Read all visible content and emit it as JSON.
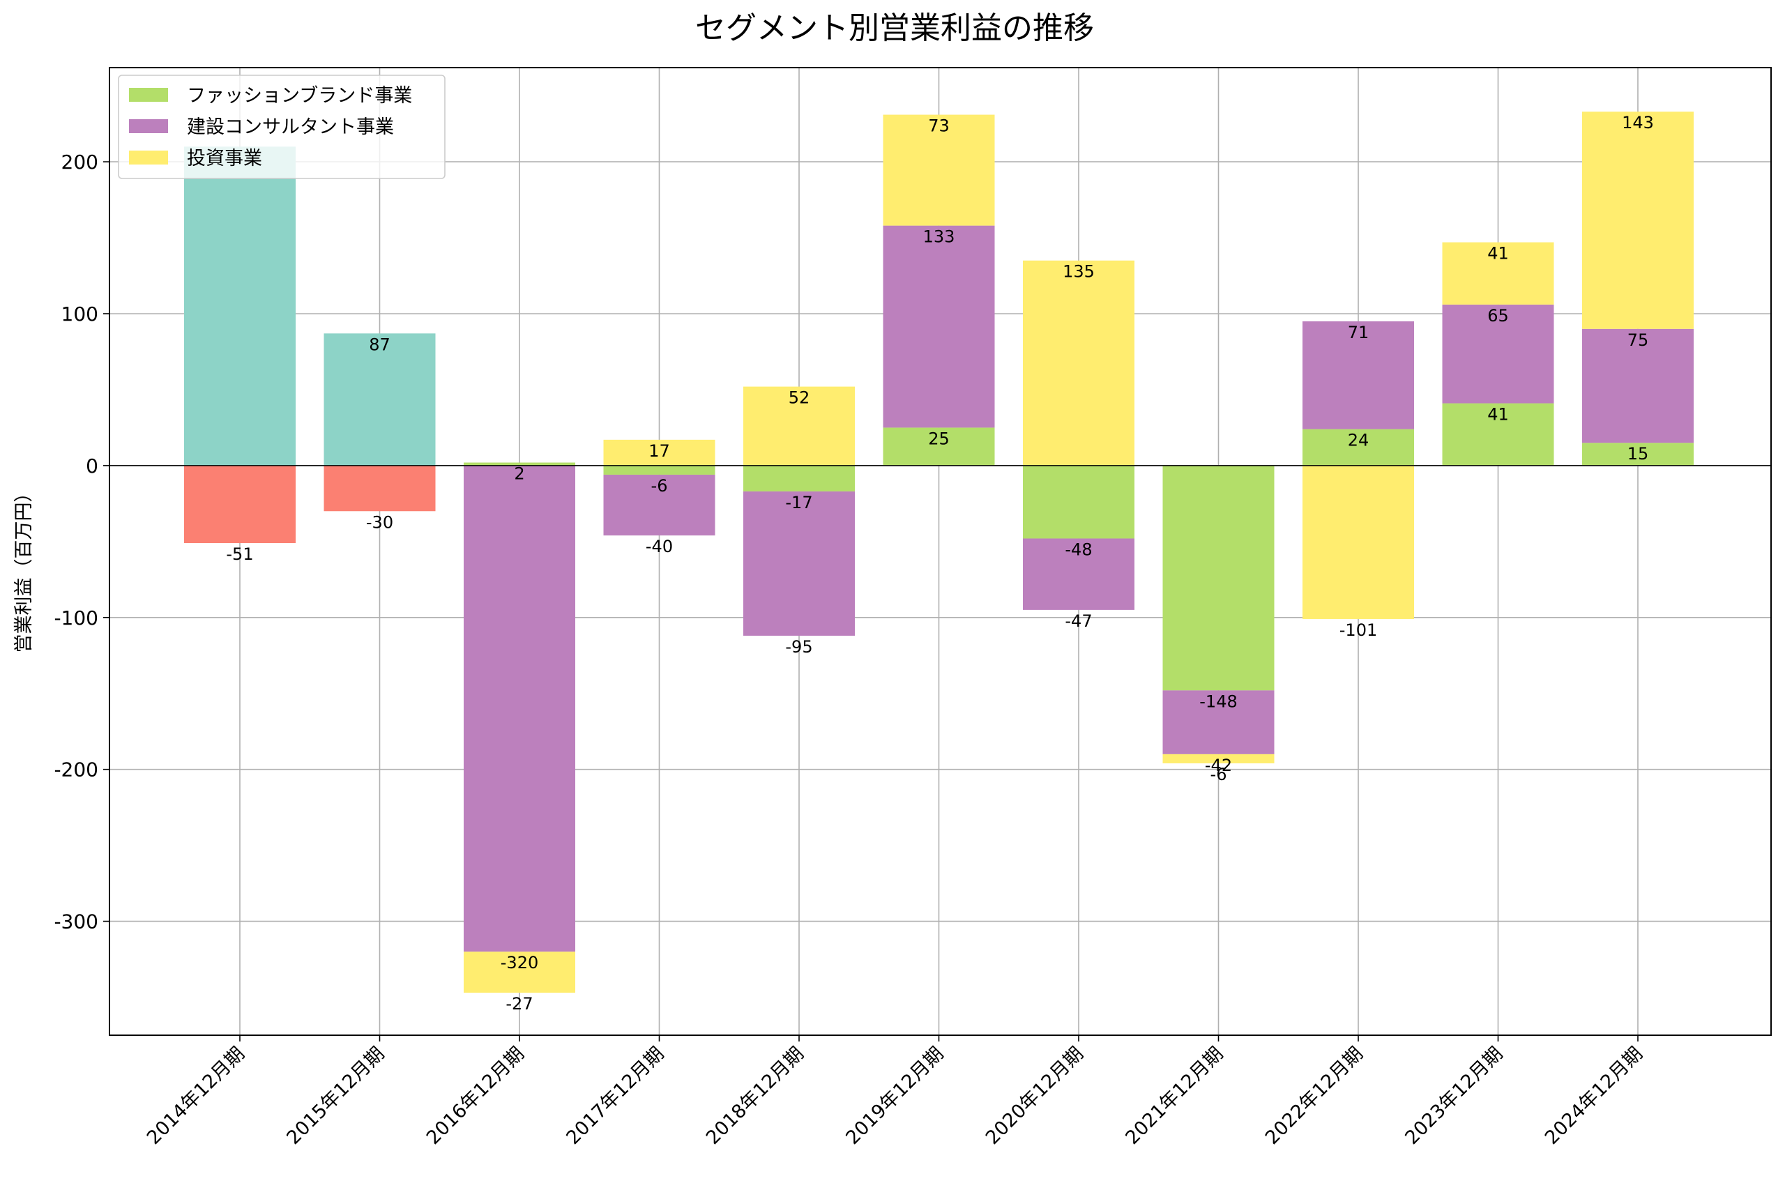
{
  "chart_data": {
    "type": "bar",
    "stacked": true,
    "title": "セグメント別営業利益の推移",
    "xlabel": "",
    "ylabel": "営業利益（百万円）",
    "ylim": [
      -375,
      262
    ],
    "yticks": [
      -300,
      -200,
      -100,
      0,
      100,
      200
    ],
    "grid": true,
    "legend_position": "top-left",
    "categories": [
      "2014年12月期",
      "2015年12月期",
      "2016年12月期",
      "2017年12月期",
      "2018年12月期",
      "2019年12月期",
      "2020年12月期",
      "2021年12月期",
      "2022年12月期",
      "2023年12月期",
      "2024年12月期"
    ],
    "series": [
      {
        "color": "#8dd3c7",
        "in_legend": false,
        "values": [
          210,
          87,
          null,
          null,
          null,
          null,
          null,
          null,
          null,
          null,
          null
        ],
        "labels": [
          "",
          "87",
          "",
          "",
          "",
          "",
          "",
          "",
          "",
          "",
          ""
        ]
      },
      {
        "color": "#fb8072",
        "in_legend": false,
        "values": [
          -51,
          -30,
          null,
          null,
          null,
          null,
          null,
          null,
          null,
          null,
          null
        ],
        "labels": [
          "-51",
          "-30",
          "",
          "",
          "",
          "",
          "",
          "",
          "",
          "",
          ""
        ]
      },
      {
        "name": "ファッションブランド事業",
        "color": "#b3de69",
        "in_legend": true,
        "values": [
          null,
          null,
          2,
          -6,
          -17,
          25,
          -48,
          -148,
          24,
          41,
          15
        ],
        "labels": [
          "",
          "",
          "2",
          "-6",
          "-17",
          "25",
          "-48",
          "-148",
          "24",
          "41",
          "15"
        ]
      },
      {
        "name": "建設コンサルタント事業",
        "color": "#bc80bd",
        "in_legend": true,
        "values": [
          null,
          null,
          -320,
          -40,
          -95,
          133,
          -47,
          -42,
          71,
          65,
          75
        ],
        "labels": [
          "",
          "",
          "-320",
          "-40",
          "-95",
          "133",
          "-47",
          "-42",
          "71",
          "65",
          "75"
        ]
      },
      {
        "name": "投資事業",
        "color": "#ffed6f",
        "in_legend": true,
        "values": [
          null,
          null,
          -27,
          17,
          52,
          73,
          135,
          -6,
          -101,
          41,
          143
        ],
        "labels": [
          "",
          "",
          "-27",
          "17",
          "52",
          "73",
          "135",
          "-6",
          "-101",
          "41",
          "143"
        ]
      }
    ]
  }
}
